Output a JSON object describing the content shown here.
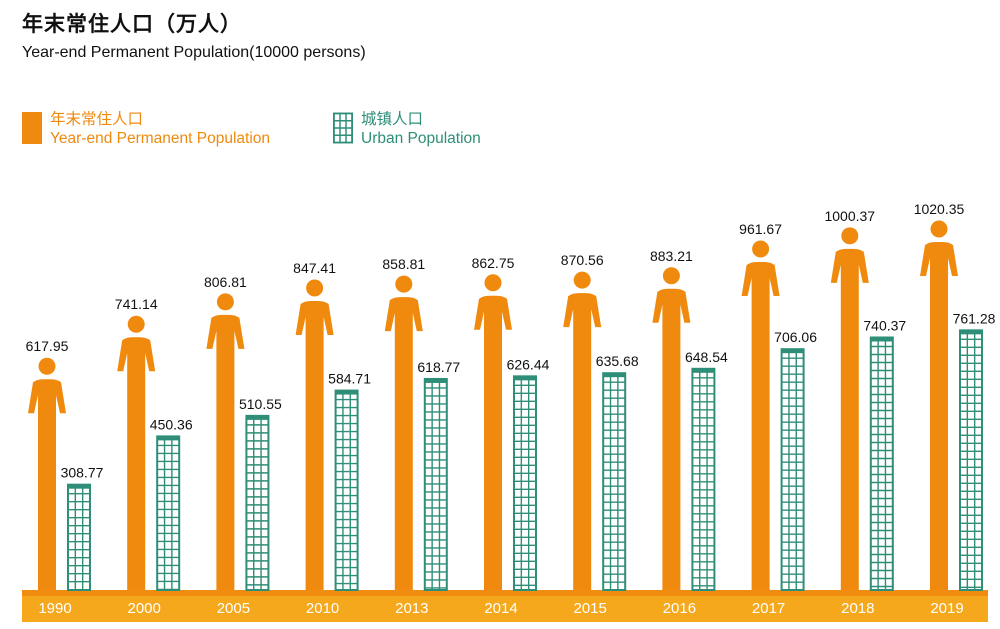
{
  "title_zh": "年末常住人口（万人）",
  "title_en": "Year-end Permanent Population(10000 persons)",
  "legend": [
    {
      "zh": "年末常住人口",
      "en": "Year-end Permanent Population",
      "color": "#ef8a0f"
    },
    {
      "zh": "城镇人口",
      "en": "Urban Population",
      "color": "#2e8e78"
    }
  ],
  "colors": {
    "permanent": "#ef8a0f",
    "urban_stroke": "#2e8e78",
    "urban_fill": "#ffffff",
    "axis_band": "#f5a81c",
    "axis_band_dark": "#f08c10"
  },
  "chart_data": {
    "type": "bar",
    "title": "年末常住人口（万人）",
    "subtitle": "Year-end Permanent Population(10000 persons)",
    "categories": [
      "1990",
      "2000",
      "2005",
      "2010",
      "2013",
      "2014",
      "2015",
      "2016",
      "2017",
      "2018",
      "2019"
    ],
    "series": [
      {
        "name": "Year-end Permanent Population",
        "values": [
          617.95,
          741.14,
          806.81,
          847.41,
          858.81,
          862.75,
          870.56,
          883.21,
          961.67,
          1000.37,
          1020.35
        ]
      },
      {
        "name": "Urban Population",
        "values": [
          308.77,
          450.36,
          510.55,
          584.71,
          618.77,
          626.44,
          635.68,
          648.54,
          706.06,
          740.37,
          761.28
        ]
      }
    ],
    "value_labels": {
      "permanent": [
        "617.95",
        "741.14",
        "806.81",
        "847.41",
        "858.81",
        "862.75",
        "870.56",
        "883.21",
        "961.67",
        "1000.37",
        "1020.35"
      ],
      "urban": [
        "308.77",
        "450.36",
        "510.55",
        "584.71",
        "618.77",
        "626.44",
        "635.68",
        "648.54",
        "706.06",
        "740.37",
        "761.28"
      ]
    },
    "legend_position": "top-left",
    "grid": false
  }
}
